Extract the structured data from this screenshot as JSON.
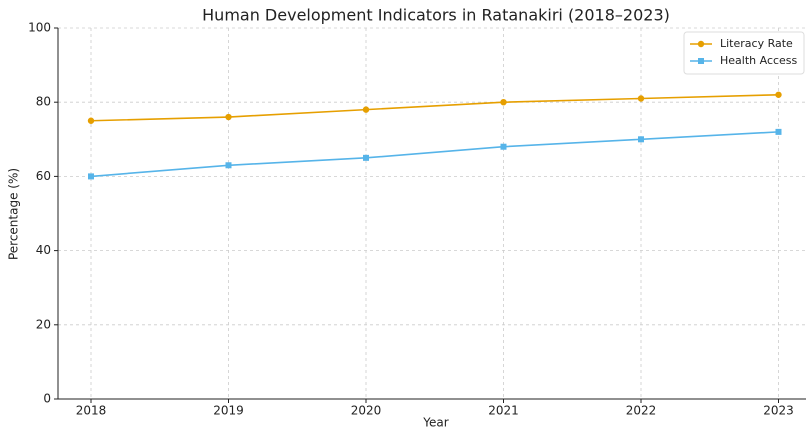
{
  "chart_data": {
    "type": "line",
    "title": "Human Development Indicators in Ratanakiri (2018–2023)",
    "xlabel": "Year",
    "ylabel": "Percentage (%)",
    "x": [
      2018,
      2019,
      2020,
      2021,
      2022,
      2023
    ],
    "series": [
      {
        "name": "Literacy Rate",
        "color": "#e69f00",
        "marker": "circle",
        "values": [
          75,
          76,
          78,
          80,
          81,
          82
        ]
      },
      {
        "name": "Health Access",
        "color": "#56b4e9",
        "marker": "square",
        "values": [
          60,
          63,
          65,
          68,
          70,
          72
        ]
      }
    ],
    "xlim": [
      2017.76,
      2023.2
    ],
    "xticks": [
      2018,
      2019,
      2020,
      2021,
      2022,
      2023
    ],
    "ylim": [
      0,
      100
    ],
    "yticks": [
      0,
      20,
      40,
      60,
      80,
      100
    ],
    "grid": true,
    "legend": "upper right"
  }
}
